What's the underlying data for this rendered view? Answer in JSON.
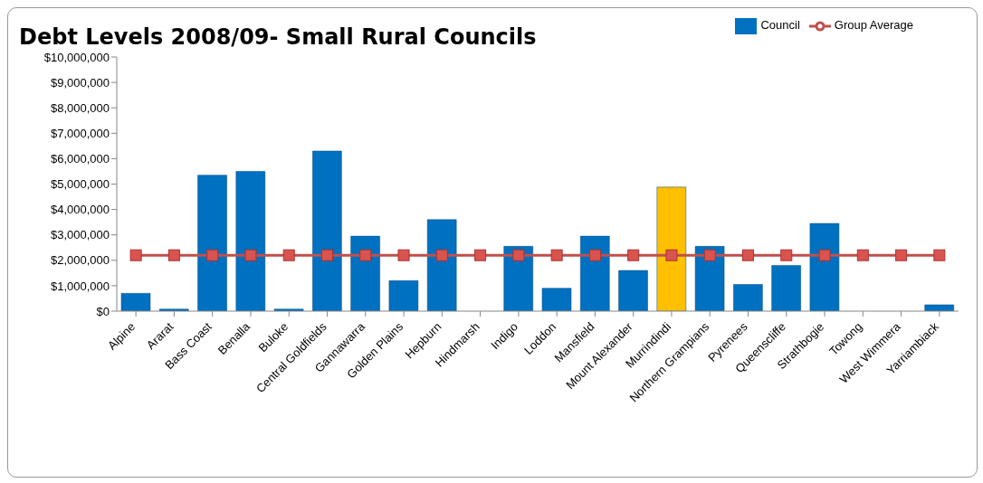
{
  "chart_data": {
    "type": "bar",
    "title": "Debt Levels 2008/09- Small Rural Councils",
    "categories": [
      "Alpine",
      "Ararat",
      "Bass Coast",
      "Benalla",
      "Buloke",
      "Central Goldfields",
      "Gannawarra",
      "Golden Plains",
      "Hepburn",
      "Hindmarsh",
      "Indigo",
      "Loddon",
      "Mansfield",
      "Mount Alexander",
      "Murrindindi",
      "Northern Grampians",
      "Pyrenees",
      "Queenscliffe",
      "Strathbogie",
      "Towong",
      "West Wimmera",
      "Yarriambiack"
    ],
    "series": [
      {
        "name": "Council",
        "color": "#0070c0",
        "colors": [
          "#0070c0",
          "#0070c0",
          "#0070c0",
          "#0070c0",
          "#0070c0",
          "#0070c0",
          "#0070c0",
          "#0070c0",
          "#0070c0",
          "#0070c0",
          "#0070c0",
          "#0070c0",
          "#0070c0",
          "#0070c0",
          "#ffc000",
          "#0070c0",
          "#0070c0",
          "#0070c0",
          "#0070c0",
          "#0070c0",
          "#0070c0",
          "#0070c0"
        ],
        "values": [
          700000,
          80000,
          5350000,
          5500000,
          80000,
          6300000,
          2950000,
          1200000,
          3600000,
          0,
          2550000,
          900000,
          2950000,
          1600000,
          4880000,
          2550000,
          1050000,
          1800000,
          3450000,
          0,
          0,
          250000
        ]
      },
      {
        "name": "Group Average",
        "type": "line",
        "color": "#c0504d",
        "marker": "square",
        "values": [
          2200000,
          2200000,
          2200000,
          2200000,
          2200000,
          2200000,
          2200000,
          2200000,
          2200000,
          2200000,
          2200000,
          2200000,
          2200000,
          2200000,
          2200000,
          2200000,
          2200000,
          2200000,
          2200000,
          2200000,
          2200000,
          2200000
        ]
      }
    ],
    "ylim": [
      0,
      10000000
    ],
    "yticks": [
      {
        "value": 0,
        "label": "$0"
      },
      {
        "value": 1000000,
        "label": "$1,000,000"
      },
      {
        "value": 2000000,
        "label": "$2,000,000"
      },
      {
        "value": 3000000,
        "label": "$3,000,000"
      },
      {
        "value": 4000000,
        "label": "$4,000,000"
      },
      {
        "value": 5000000,
        "label": "$5,000,000"
      },
      {
        "value": 6000000,
        "label": "$6,000,000"
      },
      {
        "value": 7000000,
        "label": "$7,000,000"
      },
      {
        "value": 8000000,
        "label": "$8,000,000"
      },
      {
        "value": 9000000,
        "label": "$9,000,000"
      },
      {
        "value": 10000000,
        "label": "$10,000,000"
      }
    ],
    "grid": false,
    "legend": "top right"
  }
}
